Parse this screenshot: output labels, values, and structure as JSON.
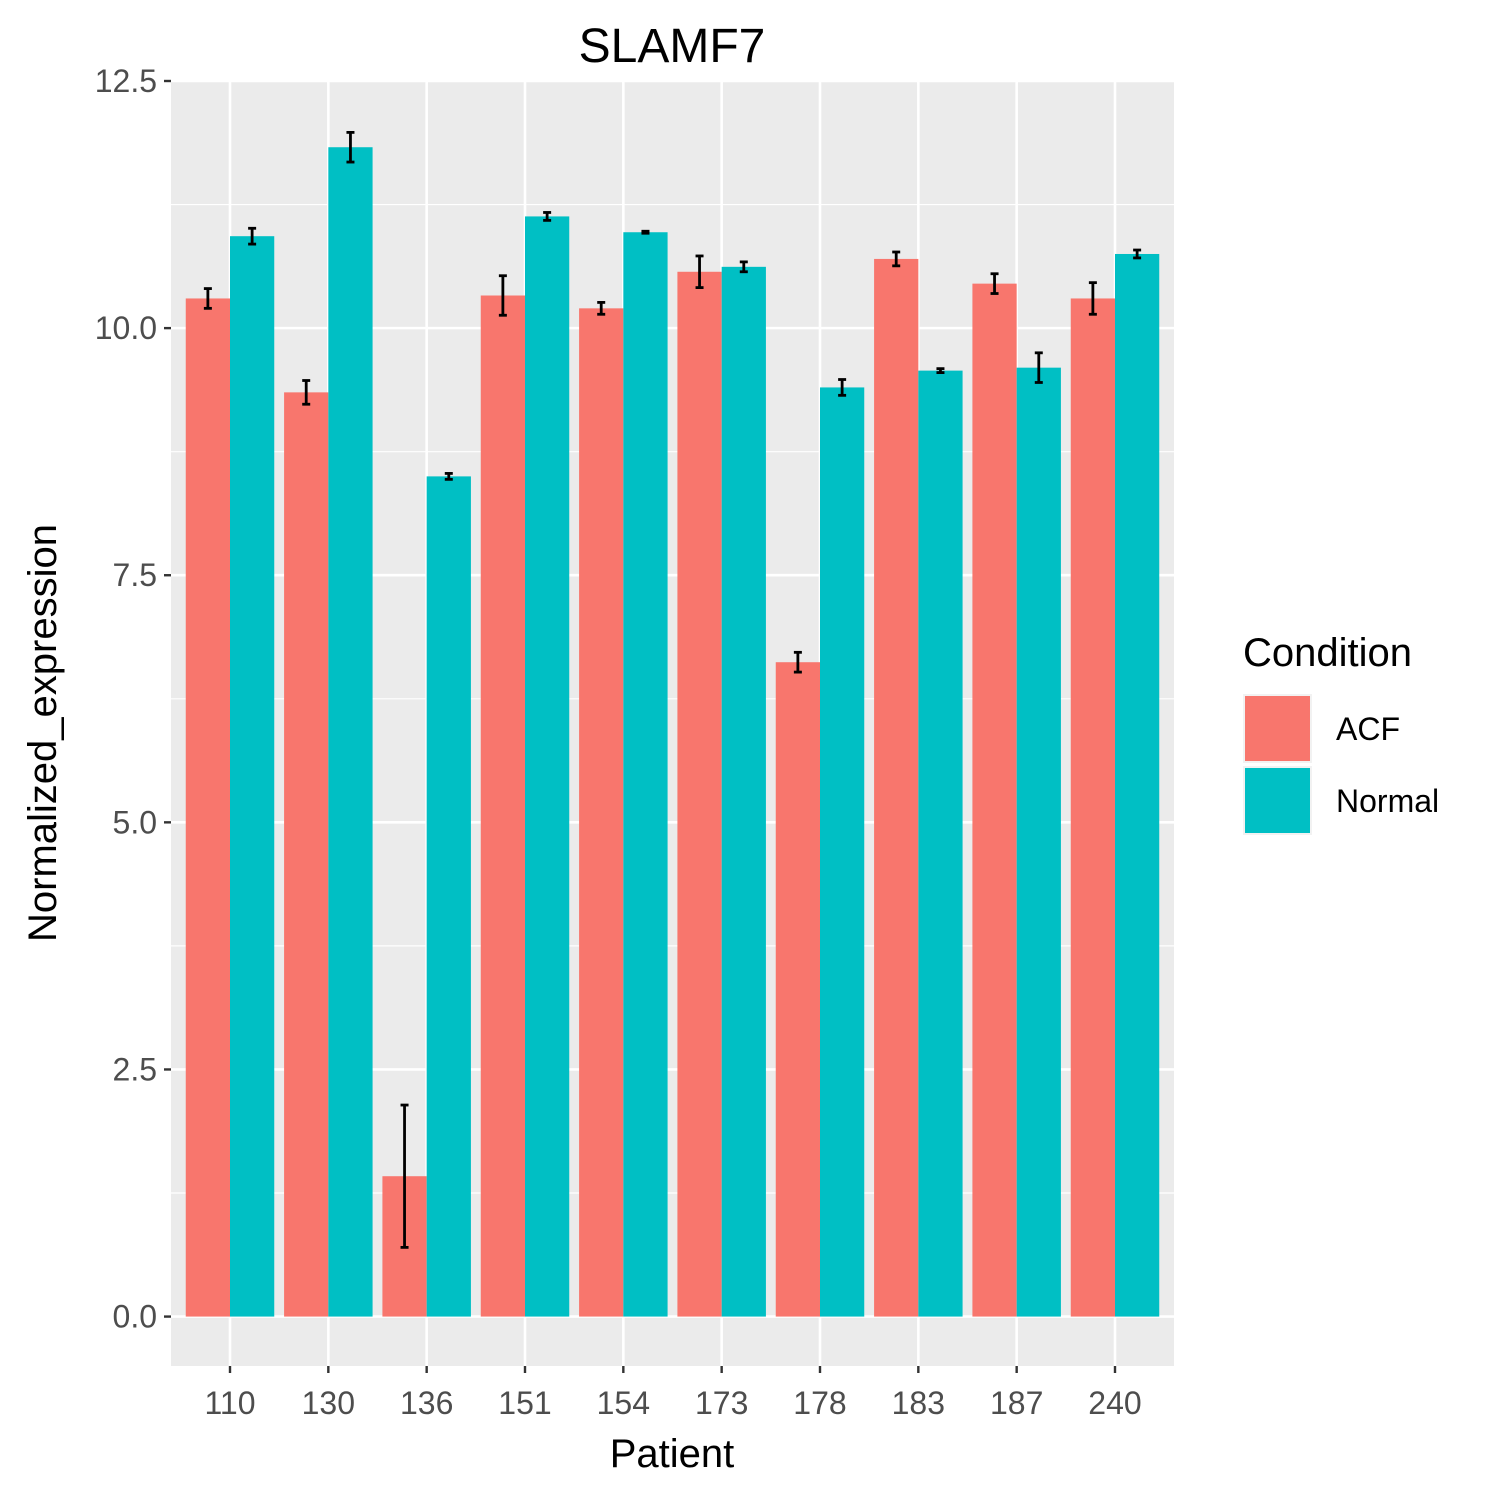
{
  "chart_data": {
    "type": "bar",
    "title": "SLAMF7",
    "xlabel": "Patient",
    "ylabel": "Normalized_expression",
    "categories": [
      "110",
      "130",
      "136",
      "151",
      "154",
      "173",
      "178",
      "183",
      "187",
      "240"
    ],
    "ylim": [
      -0.5,
      12.5
    ],
    "yticks": [
      0.0,
      2.5,
      5.0,
      7.5,
      10.0,
      12.5
    ],
    "ytick_labels": [
      "0.0",
      "2.5",
      "5.0",
      "7.5",
      "10.0",
      "12.5"
    ],
    "grid": true,
    "legend": {
      "title": "Condition",
      "position": "right"
    },
    "series": [
      {
        "name": "ACF",
        "color": "#F8766D",
        "values": [
          10.3,
          9.35,
          1.42,
          10.33,
          10.2,
          10.57,
          6.62,
          10.7,
          10.45,
          10.3
        ],
        "error": [
          0.1,
          0.12,
          0.72,
          0.2,
          0.06,
          0.16,
          0.1,
          0.07,
          0.1,
          0.16
        ]
      },
      {
        "name": "Normal",
        "color": "#00BFC4",
        "values": [
          10.93,
          11.83,
          8.5,
          11.13,
          10.97,
          10.62,
          9.4,
          9.57,
          9.6,
          10.75
        ],
        "error": [
          0.08,
          0.15,
          0.03,
          0.04,
          0.01,
          0.05,
          0.08,
          0.02,
          0.15,
          0.04
        ]
      }
    ]
  }
}
